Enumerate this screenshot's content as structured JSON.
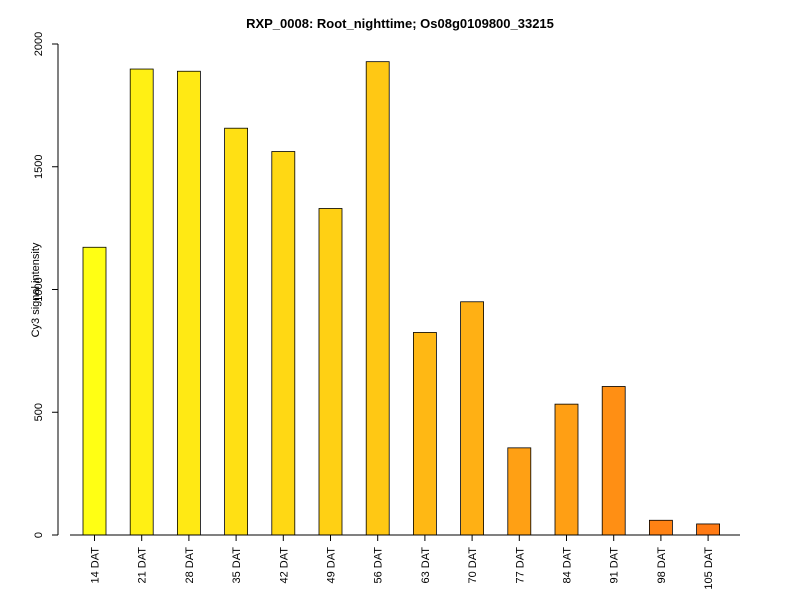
{
  "chart_data": {
    "type": "bar",
    "title": "RXP_0008: Root_nighttime; Os08g0109800_33215",
    "xlabel": "",
    "ylabel": "Cy3 signal intensity",
    "ylim": [
      0,
      2000
    ],
    "yticks": [
      0,
      500,
      1000,
      1500,
      2000
    ],
    "grid": false,
    "legend": "none",
    "categories": [
      "14 DAT",
      "21 DAT",
      "28 DAT",
      "35 DAT",
      "42 DAT",
      "49 DAT",
      "56 DAT",
      "63 DAT",
      "70 DAT",
      "77 DAT",
      "84 DAT",
      "91 DAT",
      "98 DAT",
      "105 DAT"
    ],
    "values": [
      1172,
      1898,
      1889,
      1657,
      1562,
      1330,
      1928,
      825,
      950,
      355,
      533,
      605,
      60,
      45
    ],
    "colors": [
      "#FFFF14",
      "#FFF014",
      "#FFE914",
      "#FFE014",
      "#FFD814",
      "#FFD014",
      "#FFC814",
      "#FFB814",
      "#FFB014",
      "#FFA014",
      "#FF9F14",
      "#FF8F14",
      "#FF8214",
      "#FF7A14"
    ]
  }
}
